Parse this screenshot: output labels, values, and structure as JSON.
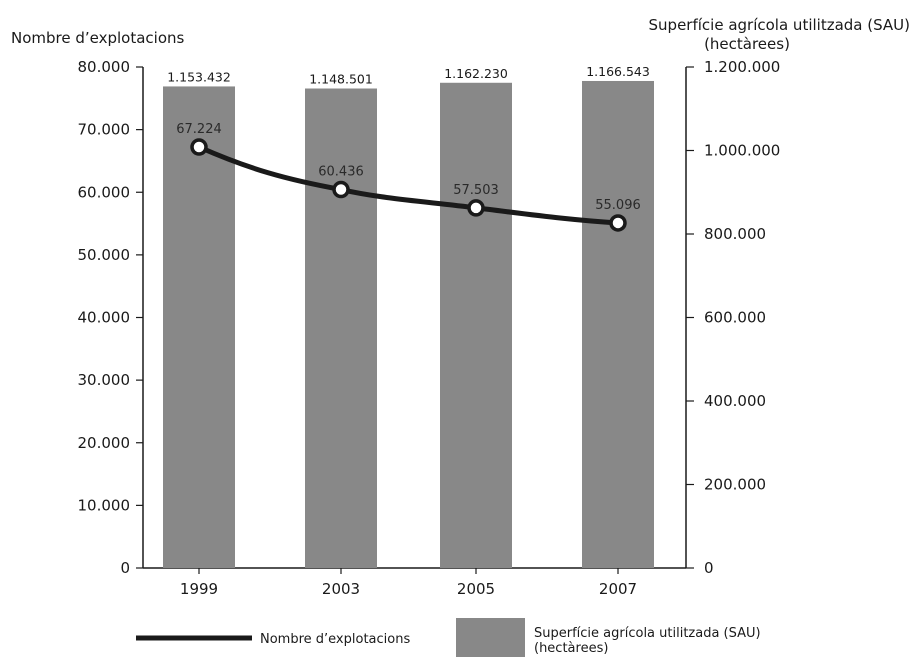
{
  "chart_data": {
    "type": "bar",
    "categories": [
      "1999",
      "2003",
      "2005",
      "2007"
    ],
    "series": [
      {
        "name": "Superfície agrícola utilitzada (SAU) (hectàrees)",
        "kind": "bar",
        "axis": "right",
        "color": "#888888",
        "values": [
          1153432,
          1148501,
          1162230,
          1166543
        ],
        "labels": [
          "1.153.432",
          "1.148.501",
          "1.162.230",
          "1.166.543"
        ]
      },
      {
        "name": "Nombre d'explotacions",
        "kind": "line",
        "axis": "left",
        "color": "#1a1a1a",
        "values": [
          67224,
          60436,
          57503,
          55096
        ],
        "labels": [
          "67.224",
          "60.436",
          "57.503",
          "55.096"
        ]
      }
    ],
    "y_left": {
      "title": "Nombre d’explotacions",
      "ylim": [
        0,
        80000
      ],
      "ticks": [
        0,
        10000,
        20000,
        30000,
        40000,
        50000,
        60000,
        70000,
        80000
      ],
      "tick_labels": [
        "0",
        "10.000",
        "20.000",
        "30.000",
        "40.000",
        "50.000",
        "60.000",
        "70.000",
        "80.000"
      ]
    },
    "y_right": {
      "title_line1": "Superfície agrícola utilitzada (SAU)",
      "title_line2": "(hectàrees)",
      "ylim": [
        0,
        1200000
      ],
      "ticks": [
        0,
        200000,
        400000,
        600000,
        800000,
        1000000,
        1200000
      ],
      "tick_labels": [
        "0",
        "200.000",
        "400.000",
        "600.000",
        "800.000",
        "1.000.000",
        "1.200.000"
      ]
    },
    "legend": {
      "line_label": "Nombre d’explotacions",
      "bar_label_line1": "Superfície agrícola utilitzada (SAU)",
      "bar_label_line2": "(hectàrees)",
      "placement": "bottom"
    },
    "grid": false
  }
}
